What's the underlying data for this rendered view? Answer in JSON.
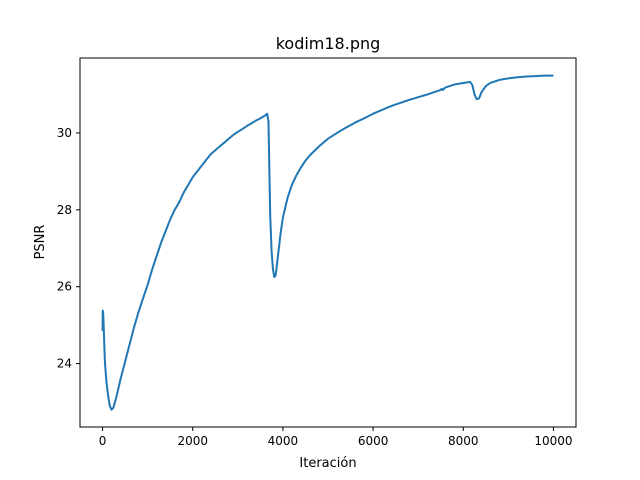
{
  "chart_data": {
    "type": "line",
    "title": "kodim18.png",
    "xlabel": "Iteración",
    "ylabel": "PSNR",
    "xlim": [
      -500,
      10500
    ],
    "ylim": [
      22.35,
      31.95
    ],
    "xticks": [
      0,
      2000,
      4000,
      6000,
      8000,
      10000
    ],
    "yticks": [
      24,
      26,
      28,
      30
    ],
    "grid": false,
    "line_color": "#1f77b4",
    "series": [
      {
        "points": [
          [
            0,
            24.85
          ],
          [
            5,
            25.38
          ],
          [
            15,
            25.3
          ],
          [
            30,
            24.8
          ],
          [
            50,
            24.1
          ],
          [
            80,
            23.6
          ],
          [
            120,
            23.2
          ],
          [
            160,
            22.9
          ],
          [
            200,
            22.8
          ],
          [
            240,
            22.85
          ],
          [
            300,
            23.1
          ],
          [
            400,
            23.6
          ],
          [
            500,
            24.05
          ],
          [
            600,
            24.5
          ],
          [
            700,
            24.95
          ],
          [
            800,
            25.35
          ],
          [
            900,
            25.7
          ],
          [
            1000,
            26.05
          ],
          [
            1100,
            26.45
          ],
          [
            1200,
            26.8
          ],
          [
            1300,
            27.15
          ],
          [
            1400,
            27.45
          ],
          [
            1500,
            27.75
          ],
          [
            1600,
            28.0
          ],
          [
            1700,
            28.2
          ],
          [
            1800,
            28.45
          ],
          [
            1900,
            28.65
          ],
          [
            2000,
            28.85
          ],
          [
            2100,
            29.0
          ],
          [
            2200,
            29.15
          ],
          [
            2300,
            29.3
          ],
          [
            2400,
            29.45
          ],
          [
            2500,
            29.55
          ],
          [
            2600,
            29.65
          ],
          [
            2700,
            29.75
          ],
          [
            2800,
            29.85
          ],
          [
            2900,
            29.95
          ],
          [
            3000,
            30.03
          ],
          [
            3100,
            30.1
          ],
          [
            3200,
            30.18
          ],
          [
            3300,
            30.25
          ],
          [
            3400,
            30.32
          ],
          [
            3500,
            30.38
          ],
          [
            3600,
            30.45
          ],
          [
            3650,
            30.5
          ],
          [
            3680,
            30.3
          ],
          [
            3700,
            29.0
          ],
          [
            3720,
            27.8
          ],
          [
            3750,
            26.9
          ],
          [
            3780,
            26.45
          ],
          [
            3810,
            26.25
          ],
          [
            3840,
            26.3
          ],
          [
            3880,
            26.7
          ],
          [
            3950,
            27.4
          ],
          [
            4000,
            27.8
          ],
          [
            4100,
            28.3
          ],
          [
            4200,
            28.65
          ],
          [
            4300,
            28.9
          ],
          [
            4400,
            29.1
          ],
          [
            4500,
            29.28
          ],
          [
            4600,
            29.42
          ],
          [
            4800,
            29.65
          ],
          [
            5000,
            29.85
          ],
          [
            5200,
            30.0
          ],
          [
            5400,
            30.14
          ],
          [
            5600,
            30.27
          ],
          [
            5800,
            30.38
          ],
          [
            6000,
            30.5
          ],
          [
            6200,
            30.6
          ],
          [
            6400,
            30.7
          ],
          [
            6600,
            30.78
          ],
          [
            6800,
            30.86
          ],
          [
            7000,
            30.93
          ],
          [
            7200,
            31.0
          ],
          [
            7400,
            31.08
          ],
          [
            7500,
            31.12
          ],
          [
            7520,
            31.15
          ],
          [
            7550,
            31.12
          ],
          [
            7600,
            31.18
          ],
          [
            7700,
            31.22
          ],
          [
            7800,
            31.26
          ],
          [
            7900,
            31.28
          ],
          [
            8000,
            31.3
          ],
          [
            8100,
            31.32
          ],
          [
            8150,
            31.33
          ],
          [
            8200,
            31.25
          ],
          [
            8250,
            31.0
          ],
          [
            8300,
            30.88
          ],
          [
            8350,
            30.9
          ],
          [
            8400,
            31.05
          ],
          [
            8500,
            31.22
          ],
          [
            8600,
            31.3
          ],
          [
            8800,
            31.38
          ],
          [
            9000,
            31.42
          ],
          [
            9200,
            31.45
          ],
          [
            9400,
            31.47
          ],
          [
            9600,
            31.48
          ],
          [
            9800,
            31.49
          ],
          [
            10000,
            31.49
          ]
        ]
      }
    ]
  }
}
